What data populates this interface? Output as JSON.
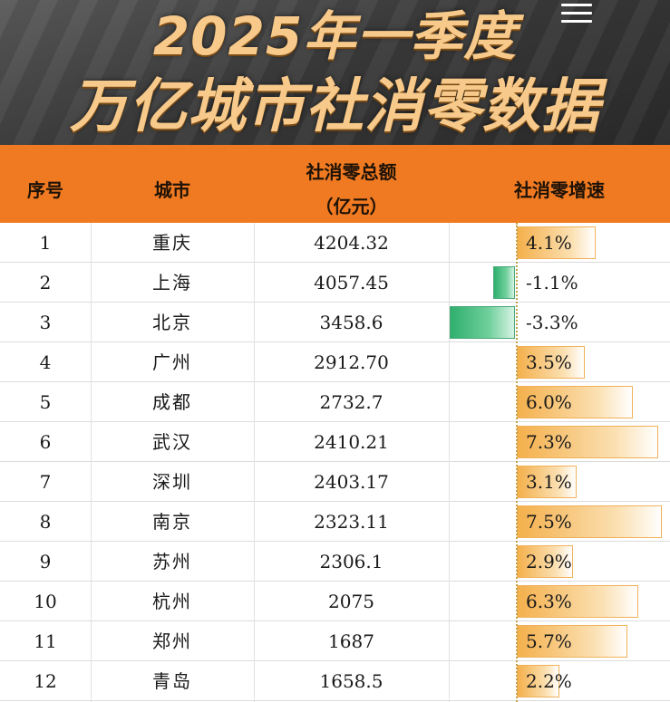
{
  "title": {
    "line1": "2025年一季度",
    "line2": "万亿城市社消零数据"
  },
  "table": {
    "headers": {
      "rank": "序号",
      "city": "城市",
      "total_line1": "社消零总额",
      "total_line2": "（亿元）",
      "growth": "社消零增速"
    }
  },
  "colors": {
    "header_bg": "#f07a22",
    "title_text": "#f7c98a",
    "positive_bar": "#f4b04c",
    "negative_bar": "#2faf6e"
  },
  "chart_data": {
    "type": "table",
    "title": "2025年一季度 万亿城市社消零数据",
    "columns": [
      "序号",
      "城市",
      "社消零总额（亿元）",
      "社消零增速"
    ],
    "rows": [
      {
        "rank": "1",
        "city": "重庆",
        "total": "4204.32",
        "growth": "4.1%",
        "growth_value": 4.1
      },
      {
        "rank": "2",
        "city": "上海",
        "total": "4057.45",
        "growth": "-1.1%",
        "growth_value": -1.1
      },
      {
        "rank": "3",
        "city": "北京",
        "total": "3458.6",
        "growth": "-3.3%",
        "growth_value": -3.3
      },
      {
        "rank": "4",
        "city": "广州",
        "total": "2912.70",
        "growth": "3.5%",
        "growth_value": 3.5
      },
      {
        "rank": "5",
        "city": "成都",
        "total": "2732.7",
        "growth": "6.0%",
        "growth_value": 6.0
      },
      {
        "rank": "6",
        "city": "武汉",
        "total": "2410.21",
        "growth": "7.3%",
        "growth_value": 7.3
      },
      {
        "rank": "7",
        "city": "深圳",
        "total": "2403.17",
        "growth": "3.1%",
        "growth_value": 3.1
      },
      {
        "rank": "8",
        "city": "南京",
        "total": "2323.11",
        "growth": "7.5%",
        "growth_value": 7.5
      },
      {
        "rank": "9",
        "city": "苏州",
        "total": "2306.1",
        "growth": "2.9%",
        "growth_value": 2.9
      },
      {
        "rank": "10",
        "city": "杭州",
        "total": "2075",
        "growth": "6.3%",
        "growth_value": 6.3
      },
      {
        "rank": "11",
        "city": "郑州",
        "total": "1687",
        "growth": "5.7%",
        "growth_value": 5.7
      },
      {
        "rank": "12",
        "city": "青岛",
        "total": "1658.5",
        "growth": "2.2%",
        "growth_value": 2.2
      }
    ]
  }
}
